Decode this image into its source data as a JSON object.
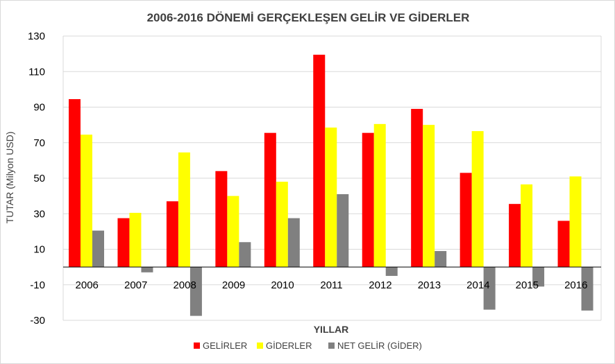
{
  "chart_data": {
    "type": "bar",
    "title": "2006-2016 DÖNEMİ GERÇEKLEŞEN GELİR VE GİDERLER",
    "xlabel": "YILLAR",
    "ylabel": "TUTAR (Milyon USD)",
    "ylim": [
      -30,
      130
    ],
    "yticks": [
      -30,
      -10,
      10,
      30,
      50,
      70,
      90,
      110,
      130
    ],
    "grid": true,
    "legend_position": "bottom",
    "categories": [
      "2006",
      "2007",
      "2008",
      "2009",
      "2010",
      "2011",
      "2012",
      "2013",
      "2014",
      "2015",
      "2016"
    ],
    "series": [
      {
        "name": "GELİRLER",
        "color": "#ff0000",
        "values": [
          94.5,
          27.5,
          37,
          54,
          75.5,
          119.5,
          75.5,
          89,
          53,
          35.5,
          26
        ]
      },
      {
        "name": "GİDERLER",
        "color": "#ffff00",
        "values": [
          74.5,
          30.5,
          64.5,
          40,
          48,
          78.5,
          80.5,
          80,
          76.5,
          46.5,
          51
        ]
      },
      {
        "name": "NET GELİR (GİDER)",
        "color": "#808080",
        "values": [
          20.5,
          -3,
          -27.5,
          14,
          27.5,
          41,
          -5,
          9,
          -24,
          -11,
          -24.5
        ]
      }
    ]
  }
}
